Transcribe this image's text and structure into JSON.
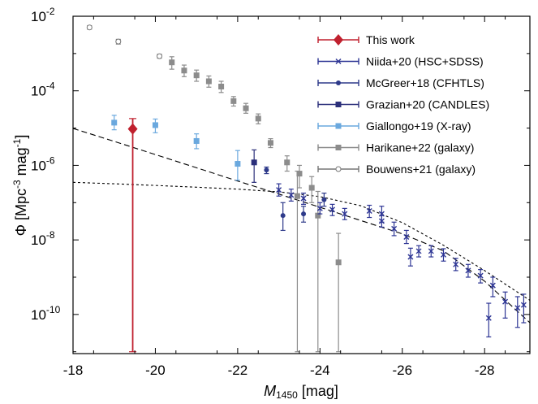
{
  "chart_data": {
    "type": "scatter",
    "title": "",
    "xlabel": {
      "symbol": "M",
      "sub": "1450",
      "unit": " [mag]"
    },
    "ylabel": {
      "prefix": "Φ [Mpc",
      "sup1": "-3",
      "mid": " mag",
      "sup2": "-1",
      "suffix": "]"
    },
    "xlim": [
      -18,
      -29.1
    ],
    "ylim_log10": [
      -11.05,
      -2
    ],
    "x_scale": "linear (inverted)",
    "y_scale": "log",
    "grid": false,
    "legend_position": "upper-right",
    "x_ticks": [
      -18,
      -20,
      -22,
      -24,
      -26,
      -28
    ],
    "y_ticks": [
      {
        "exp": "-2",
        "value": 0.01
      },
      {
        "exp": "-4",
        "value": 0.0001
      },
      {
        "exp": "-6",
        "value": 1e-06
      },
      {
        "exp": "-8",
        "value": 1e-08
      },
      {
        "exp": "-10",
        "value": 1e-10
      }
    ],
    "y_tick_base": "10",
    "series": [
      {
        "name": "Bouwens+21 (galaxy)",
        "color": "#777777",
        "marker": "open-circle",
        "points": [
          [
            -18.4,
            0.005,
            0.0045,
            0.0056
          ],
          [
            -19.1,
            0.0021,
            0.0018,
            0.0024
          ],
          [
            -20.1,
            0.00085,
            0.00075,
            0.00096
          ]
        ]
      },
      {
        "name": "Harikane+22 (galaxy)",
        "color": "#8c8c8c",
        "marker": "square",
        "points": [
          [
            -20.4,
            0.00058,
            0.00038,
            0.00082
          ],
          [
            -20.7,
            0.00035,
            0.00024,
            0.00049
          ],
          [
            -21.0,
            0.00026,
            0.00018,
            0.00036
          ],
          [
            -21.3,
            0.00018,
            0.000125,
            0.00025
          ],
          [
            -21.6,
            0.00013,
            9e-05,
            0.00018
          ],
          [
            -21.9,
            5.3e-05,
            3.9e-05,
            7e-05
          ],
          [
            -22.2,
            3.4e-05,
            2.5e-05,
            4.6e-05
          ],
          [
            -22.5,
            1.8e-05,
            1.3e-05,
            2.4e-05
          ],
          [
            -22.8,
            4e-06,
            3e-06,
            5.2e-06
          ],
          [
            -23.2,
            1.2e-06,
            7e-07,
            1.8e-06
          ],
          [
            -23.5,
            6e-07,
            2.5e-07,
            1e-06
          ],
          [
            -23.8,
            2.5e-07,
            1e-07,
            5e-07
          ],
          [
            -23.45,
            1.5e-07,
            1e-11,
            7e-07
          ],
          [
            -23.95,
            4.5e-08,
            1e-11,
            2e-07
          ],
          [
            -24.45,
            2.5e-09,
            1e-11,
            1.5e-08
          ]
        ]
      },
      {
        "name": "Giallongo+19 (X-ray)",
        "color": "#6aa8de",
        "marker": "square",
        "points": [
          [
            -19.0,
            1.4e-05,
            9e-06,
            2.2e-05
          ],
          [
            -20.0,
            1.2e-05,
            7.5e-06,
            1.75e-05
          ],
          [
            -21.0,
            4.5e-06,
            2.8e-06,
            7e-06
          ],
          [
            -22.0,
            1.1e-06,
            4e-07,
            2.5e-06
          ]
        ]
      },
      {
        "name": "Grazian+20 (CANDLES)",
        "color": "#2b2f7a",
        "marker": "square",
        "points": [
          [
            -22.4,
            1.2e-06,
            3.5e-07,
            2.6e-06
          ]
        ]
      },
      {
        "name": "McGreer+18 (CFHTLS)",
        "color": "#2e3a8a",
        "marker": "circle",
        "points": [
          [
            -22.7,
            7.5e-07,
            6e-07,
            9e-07
          ],
          [
            -23.1,
            4.5e-08,
            1.8e-08,
            1e-07
          ],
          [
            -23.6,
            5e-08,
            3e-08,
            8e-08
          ],
          [
            -24.1,
            1.2e-07,
            8e-08,
            1.8e-07
          ]
        ]
      },
      {
        "name": "Niida+20 (HSC+SDSS)",
        "color": "#2d3594",
        "marker": "x",
        "points": [
          [
            -23.0,
            2.2e-07,
            1.5e-07,
            3.2e-07
          ],
          [
            -23.3,
            1.6e-07,
            1.1e-07,
            2.3e-07
          ],
          [
            -23.6,
            1.3e-07,
            9e-08,
            1.8e-07
          ],
          [
            -24.0,
            7e-08,
            5e-08,
            1e-07
          ],
          [
            -24.3,
            6.5e-08,
            4.5e-08,
            9e-08
          ],
          [
            -24.6,
            5e-08,
            3.5e-08,
            7e-08
          ],
          [
            -25.2,
            6e-08,
            4e-08,
            8.5e-08
          ],
          [
            -25.5,
            3.2e-08,
            2.2e-08,
            4.5e-08
          ],
          [
            -25.8,
            2e-08,
            1.3e-08,
            3e-08
          ],
          [
            -26.1,
            1.2e-08,
            8e-09,
            1.8e-08
          ],
          [
            -26.2,
            3.5e-09,
            2e-09,
            6e-09
          ],
          [
            -26.4,
            5e-09,
            3.5e-09,
            7e-09
          ],
          [
            -26.7,
            5e-09,
            3.5e-09,
            7e-09
          ],
          [
            -27.0,
            4e-09,
            2.7e-09,
            5.8e-09
          ],
          [
            -27.3,
            2.2e-09,
            1.5e-09,
            3.2e-09
          ],
          [
            -27.6,
            1.5e-09,
            1e-09,
            2.2e-09
          ],
          [
            -27.9,
            1.1e-09,
            7e-10,
            1.6e-09
          ],
          [
            -28.2,
            6e-10,
            3e-10,
            1e-09
          ],
          [
            -28.5,
            2.2e-10,
            8e-11,
            4e-10
          ],
          [
            -28.8,
            1.5e-10,
            4.5e-11,
            3e-10
          ],
          [
            -28.1,
            8e-11,
            2.5e-11,
            2e-10
          ],
          [
            -28.95,
            1.8e-10,
            6e-11,
            3.5e-10
          ],
          [
            -25.5,
            5e-08,
            3e-08,
            8e-08
          ]
        ]
      },
      {
        "name": "This work",
        "color": "#c0202e",
        "marker": "diamond",
        "points": [
          [
            -19.45,
            9.5e-06,
            1e-11,
            1.8e-05
          ]
        ]
      }
    ],
    "curves": [
      {
        "style": "long-dash",
        "color": "#000000",
        "points": [
          [
            -18,
            9.8e-06
          ],
          [
            -19,
            4.4e-06
          ],
          [
            -20,
            1.95e-06
          ],
          [
            -21,
            8.6e-07
          ],
          [
            -22,
            3.8e-07
          ],
          [
            -23,
            1.7e-07
          ],
          [
            -24,
            7.5e-08
          ],
          [
            -25,
            3.3e-08
          ],
          [
            -26,
            1.45e-08
          ],
          [
            -27,
            5.1e-09
          ],
          [
            -28,
            7.8e-10
          ],
          [
            -29.1,
            6e-11
          ]
        ]
      },
      {
        "style": "short-dash",
        "color": "#000000",
        "points": [
          [
            -18,
            3.5e-07
          ],
          [
            -19,
            3.2e-07
          ],
          [
            -20,
            2.9e-07
          ],
          [
            -21,
            2.6e-07
          ],
          [
            -22,
            2.3e-07
          ],
          [
            -23,
            1.95e-07
          ],
          [
            -24,
            1.45e-07
          ],
          [
            -25,
            8.2e-08
          ],
          [
            -26,
            2.9e-08
          ],
          [
            -27,
            7.2e-09
          ],
          [
            -28,
            1.5e-09
          ],
          [
            -29.1,
            2.4e-10
          ]
        ]
      }
    ],
    "legend_order": [
      "This work",
      "Niida+20 (HSC+SDSS)",
      "McGreer+18 (CFHTLS)",
      "Grazian+20 (CANDLES)",
      "Giallongo+19 (X-ray)",
      "Harikane+22 (galaxy)",
      "Bouwens+21 (galaxy)"
    ]
  }
}
